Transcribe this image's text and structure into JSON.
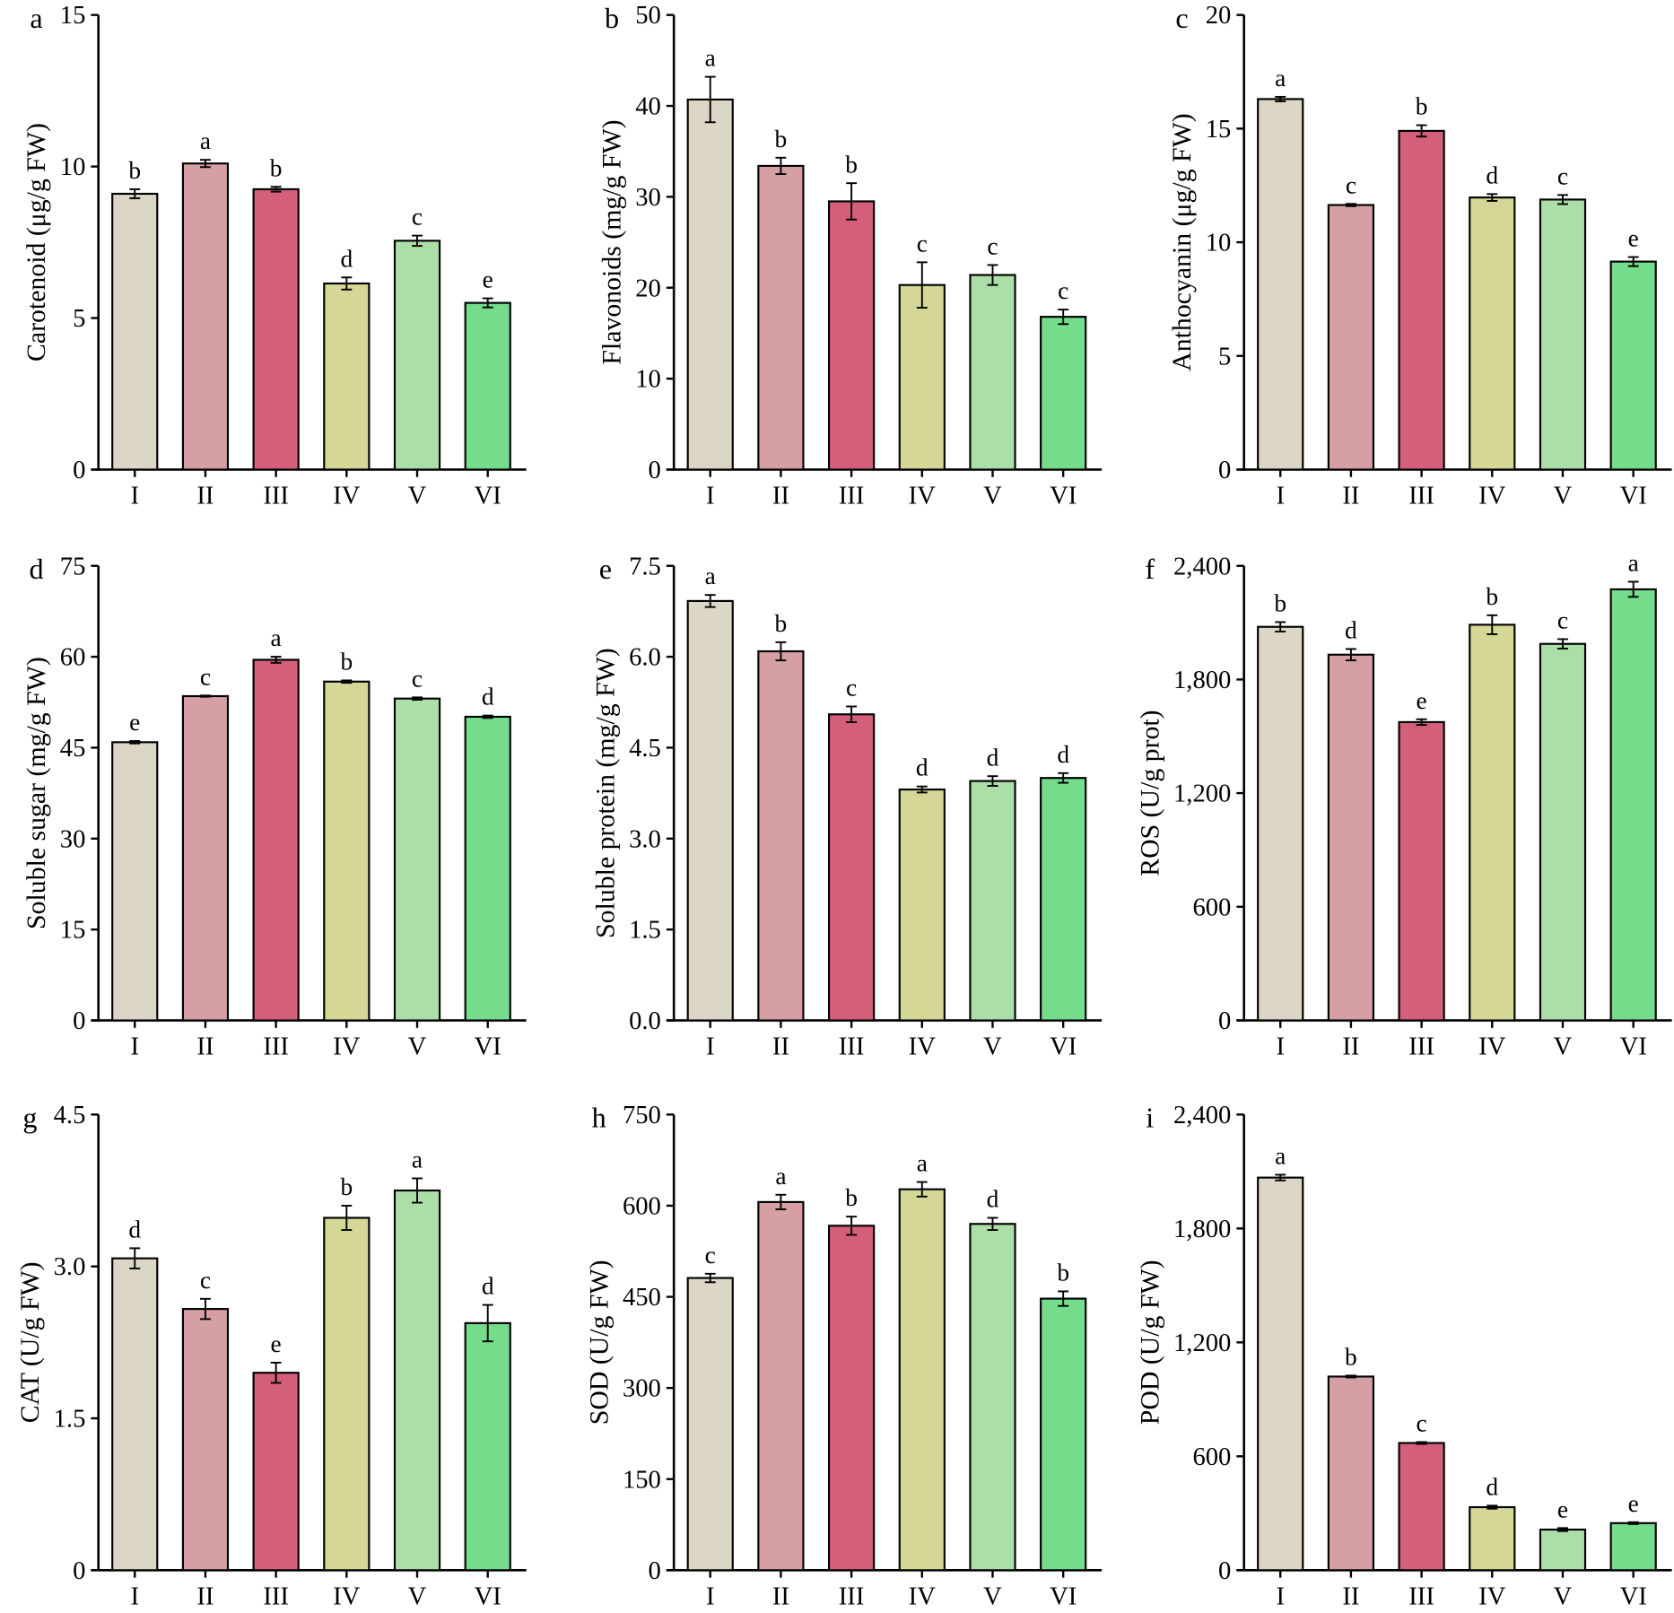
{
  "colors": [
    "#dcd6c6",
    "#d59fa4",
    "#d45f7a",
    "#d5d796",
    "#acdea8",
    "#74dc8a"
  ],
  "chart_data": [
    {
      "type": "bar",
      "panel": "a",
      "ylabel": "Carotenoid (μg/g FW)",
      "categories": [
        "I",
        "II",
        "III",
        "IV",
        "V",
        "VI"
      ],
      "ylim": [
        0,
        15
      ],
      "yticks": [
        "0",
        "5",
        "10",
        "15"
      ],
      "values": [
        9.1,
        10.1,
        9.25,
        6.14,
        7.55,
        5.5
      ],
      "errors": [
        0.15,
        0.12,
        0.08,
        0.2,
        0.17,
        0.15
      ],
      "letters": [
        "b",
        "a",
        "b",
        "d",
        "c",
        "e"
      ]
    },
    {
      "type": "bar",
      "panel": "b",
      "ylabel": "Flavonoids (mg/g FW)",
      "categories": [
        "I",
        "II",
        "III",
        "IV",
        "V",
        "VI"
      ],
      "ylim": [
        0,
        50
      ],
      "yticks": [
        "0",
        "10",
        "20",
        "30",
        "40",
        "50"
      ],
      "values": [
        40.7,
        33.4,
        29.5,
        20.3,
        21.4,
        16.8
      ],
      "errors": [
        2.5,
        0.9,
        2.0,
        2.5,
        1.1,
        0.8
      ],
      "letters": [
        "a",
        "b",
        "b",
        "c",
        "c",
        "c"
      ]
    },
    {
      "type": "bar",
      "panel": "c",
      "ylabel": "Anthocyanin (μg/g FW)",
      "categories": [
        "I",
        "II",
        "III",
        "IV",
        "V",
        "VI"
      ],
      "ylim": [
        0,
        20
      ],
      "yticks": [
        "0",
        "5",
        "10",
        "15",
        "20"
      ],
      "values": [
        16.3,
        11.64,
        14.9,
        11.97,
        11.88,
        9.15
      ],
      "errors": [
        0.1,
        0.05,
        0.25,
        0.15,
        0.2,
        0.2
      ],
      "letters": [
        "a",
        "c",
        "b",
        "d",
        "c",
        "e"
      ]
    },
    {
      "type": "bar",
      "panel": "d",
      "ylabel": "Soluble sugar (mg/g FW)",
      "categories": [
        "I",
        "II",
        "III",
        "IV",
        "V",
        "VI"
      ],
      "ylim": [
        0,
        75
      ],
      "yticks": [
        "0",
        "15",
        "30",
        "45",
        "60",
        "75"
      ],
      "values": [
        45.9,
        53.5,
        59.5,
        55.9,
        53.1,
        50.1
      ],
      "errors": [
        0.2,
        0.1,
        0.5,
        0.2,
        0.2,
        0.2
      ],
      "letters": [
        "e",
        "c",
        "a",
        "b",
        "c",
        "d"
      ]
    },
    {
      "type": "bar",
      "panel": "e",
      "ylabel": "Soluble protein (mg/g FW)",
      "categories": [
        "I",
        "II",
        "III",
        "IV",
        "V",
        "VI"
      ],
      "ylim": [
        0,
        7.5
      ],
      "yticks": [
        "0.0",
        "1.5",
        "3.0",
        "4.5",
        "6.0",
        "7.5"
      ],
      "values": [
        6.92,
        6.09,
        5.05,
        3.81,
        3.95,
        4.0
      ],
      "errors": [
        0.1,
        0.15,
        0.13,
        0.05,
        0.08,
        0.08
      ],
      "letters": [
        "a",
        "b",
        "c",
        "d",
        "d",
        "d"
      ]
    },
    {
      "type": "bar",
      "panel": "f",
      "ylabel": "ROS (U/g prot)",
      "categories": [
        "I",
        "II",
        "III",
        "IV",
        "V",
        "VI"
      ],
      "ylim": [
        0,
        2400
      ],
      "yticks": [
        "0",
        "600",
        "1,200",
        "1,800",
        "2,400"
      ],
      "values": [
        2078,
        1931,
        1575,
        2089,
        1988,
        2276
      ],
      "errors": [
        25,
        30,
        15,
        50,
        25,
        40
      ],
      "letters": [
        "b",
        "d",
        "e",
        "b",
        "c",
        "a"
      ]
    },
    {
      "type": "bar",
      "panel": "g",
      "ylabel": "CAT (U/g FW)",
      "categories": [
        "I",
        "II",
        "III",
        "IV",
        "V",
        "VI"
      ],
      "ylim": [
        0,
        4.5
      ],
      "yticks": [
        "0",
        "1.5",
        "3.0",
        "4.5"
      ],
      "values": [
        3.08,
        2.58,
        1.95,
        3.48,
        3.75,
        2.44
      ],
      "errors": [
        0.1,
        0.1,
        0.1,
        0.12,
        0.12,
        0.18
      ],
      "letters": [
        "d",
        "c",
        "e",
        "b",
        "a",
        "d"
      ]
    },
    {
      "type": "bar",
      "panel": "h",
      "ylabel": "SOD (U/g FW)",
      "categories": [
        "I",
        "II",
        "III",
        "IV",
        "V",
        "VI"
      ],
      "ylim": [
        0,
        750
      ],
      "yticks": [
        "0",
        "150",
        "300",
        "450",
        "600",
        "750"
      ],
      "values": [
        481,
        606,
        567,
        627,
        570,
        447
      ],
      "errors": [
        7,
        12,
        15,
        12,
        10,
        12
      ],
      "letters": [
        "c",
        "a",
        "b",
        "a",
        "d",
        "b"
      ]
    },
    {
      "type": "bar",
      "panel": "i",
      "ylabel": "POD (U/g FW)",
      "categories": [
        "I",
        "II",
        "III",
        "IV",
        "V",
        "VI"
      ],
      "ylim": [
        0,
        2400
      ],
      "yticks": [
        "0",
        "600",
        "1,200",
        "1,800",
        "2,400"
      ],
      "values": [
        2068,
        1020,
        670,
        332,
        214,
        248
      ],
      "errors": [
        15,
        5,
        5,
        8,
        8,
        5
      ],
      "letters": [
        "a",
        "b",
        "c",
        "d",
        "e",
        "e"
      ]
    }
  ]
}
